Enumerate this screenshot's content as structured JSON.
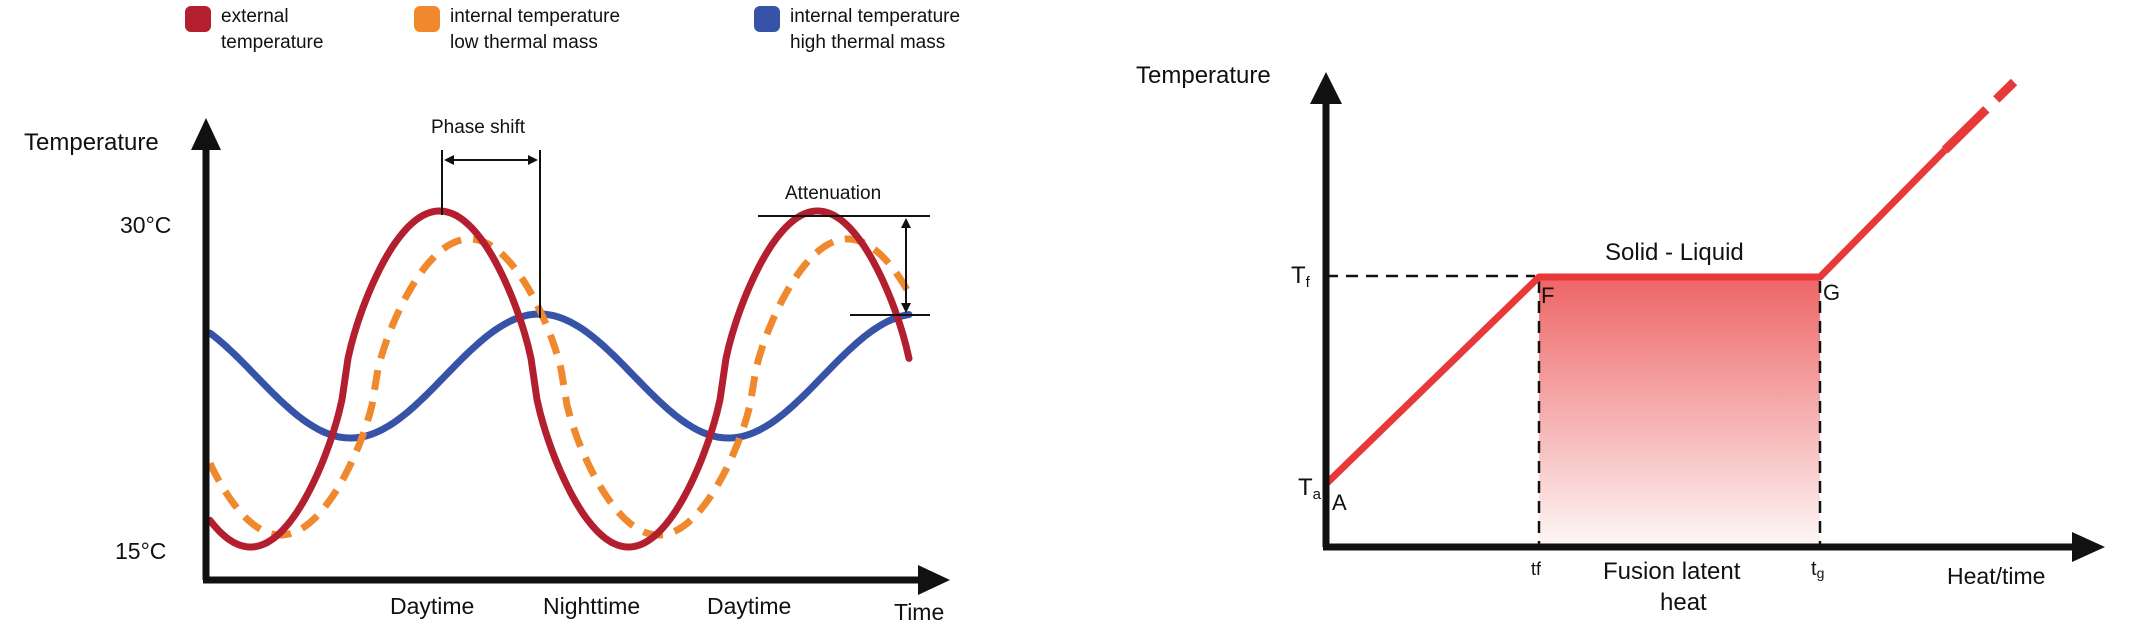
{
  "legend": {
    "items": [
      {
        "line1": "external",
        "line2": "temperature",
        "color": "#b31f2e"
      },
      {
        "line1": "internal temperature",
        "line2": "low thermal mass",
        "color": "#f0892e"
      },
      {
        "line1": "internal temperature",
        "line2": "high thermal mass",
        "color": "#3653a8"
      }
    ]
  },
  "left_diagram": {
    "y_axis_label": "Temperature",
    "x_axis_label": "Time",
    "tick_high": "30°C",
    "tick_low": "15°C",
    "phase_shift_label": "Phase shift",
    "attenuation_label": "Attenuation",
    "periods": [
      "Daytime",
      "Nighttime",
      "Daytime"
    ]
  },
  "right_diagram": {
    "y_axis_label": "Temperature",
    "x_axis_label": "Heat/time",
    "plateau_label": "Solid - Liquid",
    "area_label_line1": "Fusion latent",
    "area_label_line2": "heat",
    "tf_main": "T",
    "tf_sub": "f",
    "ta_main": "T",
    "ta_sub": "a",
    "point_a": "A",
    "point_f": "F",
    "point_g": "G",
    "time_f": "tf",
    "time_g_main": "t",
    "time_g_sub": "g",
    "line_color": "#e8393a",
    "fill_color": "#e8393a"
  }
}
